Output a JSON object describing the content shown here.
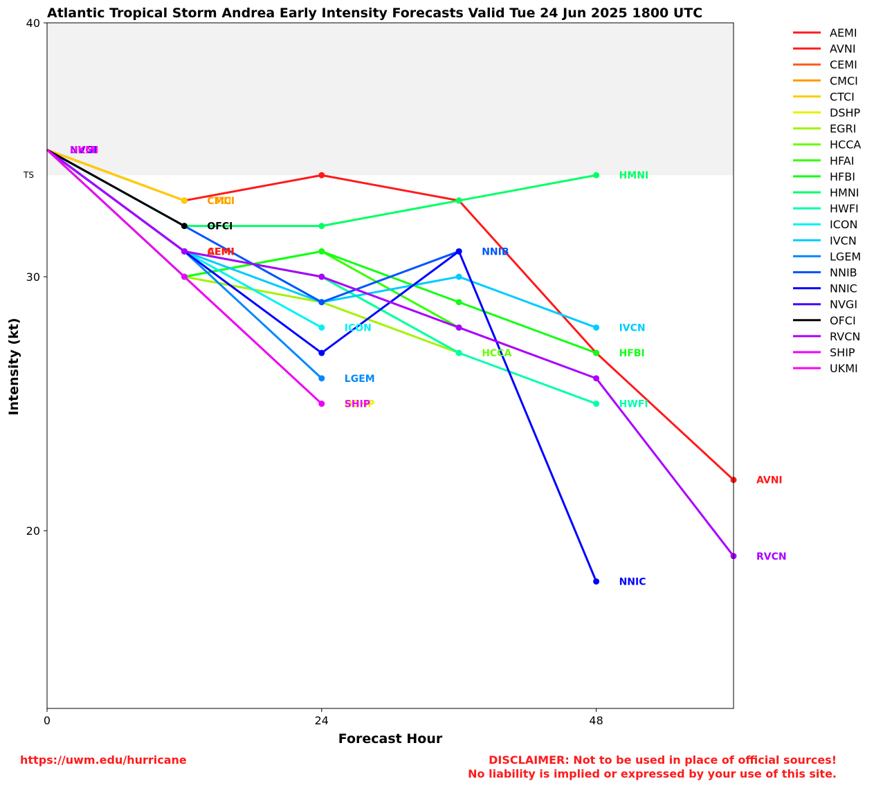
{
  "chart_data": {
    "type": "line",
    "title": "Atlantic Tropical Storm Andrea Early Intensity Forecasts Valid Tue 24 Jun 2025 1800 UTC",
    "xlabel": "Forecast Hour",
    "ylabel": "Intensity (kt)",
    "xlim": [
      0,
      60
    ],
    "ylim": [
      13,
      40
    ],
    "xticks": [
      0,
      24,
      48
    ],
    "yticks": [
      20,
      30,
      40
    ],
    "band": {
      "label": "TS",
      "from": 34,
      "to": 40,
      "color": "#f2f2f2"
    },
    "grid": false,
    "legend_position": "right",
    "series": [
      {
        "name": "AEMI",
        "color": "#ff1a1a",
        "x": [
          0,
          12
        ],
        "y": [
          35,
          31
        ],
        "end_label": ""
      },
      {
        "name": "AVNI",
        "color": "#ff1a1a",
        "x": [
          0,
          12,
          24,
          36,
          48,
          60
        ],
        "y": [
          35,
          33,
          34,
          33,
          27,
          22
        ],
        "end_label": "AVNI"
      },
      {
        "name": "CEMI",
        "color": "#ff5a1a",
        "x": [
          0,
          12
        ],
        "y": [
          35,
          31
        ],
        "end_label": ""
      },
      {
        "name": "CMCI",
        "color": "#ff9900",
        "x": [
          0,
          12
        ],
        "y": [
          35,
          33
        ],
        "end_label": ""
      },
      {
        "name": "CTCI",
        "color": "#ffcc00",
        "x": [
          0,
          12
        ],
        "y": [
          35,
          33
        ],
        "end_label": ""
      },
      {
        "name": "DSHP",
        "color": "#e6f200",
        "x": [
          0,
          12,
          24
        ],
        "y": [
          35,
          30,
          25
        ],
        "end_label": ""
      },
      {
        "name": "EGRI",
        "color": "#a6f200",
        "x": [
          0,
          12,
          24,
          36
        ],
        "y": [
          35,
          30,
          29,
          27
        ],
        "end_label": ""
      },
      {
        "name": "HCCA",
        "color": "#66ff00",
        "x": [
          0,
          12,
          24,
          36
        ],
        "y": [
          35,
          31,
          30,
          27
        ],
        "end_label": "HCCA"
      },
      {
        "name": "HFAI",
        "color": "#33ff00",
        "x": [
          0,
          12,
          24,
          36
        ],
        "y": [
          35,
          30,
          31,
          28
        ],
        "end_label": ""
      },
      {
        "name": "HFBI",
        "color": "#12ff12",
        "x": [
          0,
          12,
          24,
          36,
          48
        ],
        "y": [
          35,
          30,
          31,
          29,
          27
        ],
        "end_label": "HFBI"
      },
      {
        "name": "HMNI",
        "color": "#00ff66",
        "x": [
          0,
          12,
          24,
          36,
          48
        ],
        "y": [
          35,
          32,
          32,
          33,
          34
        ],
        "end_label": "HMNI"
      },
      {
        "name": "HWFI",
        "color": "#00ffaa",
        "x": [
          0,
          12,
          24,
          36,
          48
        ],
        "y": [
          35,
          31,
          30,
          27,
          25
        ],
        "end_label": "HWFI"
      },
      {
        "name": "ICON",
        "color": "#00f2f2",
        "x": [
          0,
          12,
          24
        ],
        "y": [
          35,
          31,
          28
        ],
        "end_label": "ICON"
      },
      {
        "name": "IVCN",
        "color": "#00ccff",
        "x": [
          0,
          12,
          24,
          36,
          48
        ],
        "y": [
          35,
          31,
          29,
          30,
          28
        ],
        "end_label": "IVCN"
      },
      {
        "name": "LGEM",
        "color": "#0088ff",
        "x": [
          0,
          12,
          24
        ],
        "y": [
          35,
          31,
          26
        ],
        "end_label": "LGEM"
      },
      {
        "name": "NNIB",
        "color": "#0055ff",
        "x": [
          0,
          12,
          24,
          36
        ],
        "y": [
          35,
          32,
          29,
          31
        ],
        "end_label": "NNIB"
      },
      {
        "name": "NNIC",
        "color": "#0000ff",
        "x": [
          0,
          12,
          24,
          36,
          48
        ],
        "y": [
          35,
          31,
          27,
          31,
          18
        ],
        "end_label": "NNIC"
      },
      {
        "name": "NVGI",
        "color": "#4400ff",
        "x": [
          0
        ],
        "y": [
          35
        ],
        "end_label": ""
      },
      {
        "name": "OFCI",
        "color": "#000000",
        "x": [
          0,
          12
        ],
        "y": [
          35,
          32
        ],
        "end_label": ""
      },
      {
        "name": "RVCN",
        "color": "#aa00ff",
        "x": [
          0,
          12,
          24,
          36,
          48,
          60
        ],
        "y": [
          35,
          31,
          30,
          28,
          26,
          19
        ],
        "end_label": "RVCN"
      },
      {
        "name": "SHIP",
        "color": "#ee00ff",
        "x": [
          0,
          12,
          24
        ],
        "y": [
          35,
          30,
          25
        ],
        "end_label": ""
      },
      {
        "name": "UKMI",
        "color": "#ff00ee",
        "x": [
          0
        ],
        "y": [
          35
        ],
        "end_label": ""
      }
    ],
    "overlap_labels": [
      {
        "text": "NVGI",
        "x": 0,
        "y": 35,
        "color": "#4400ff"
      },
      {
        "text": "UKMI",
        "x": 0,
        "y": 35,
        "color": "#ff00ee"
      },
      {
        "text": "CTCI",
        "x": 12,
        "y": 33,
        "color": "#ffcc00"
      },
      {
        "text": "CMCI",
        "x": 12,
        "y": 33,
        "color": "#ff9900"
      },
      {
        "text": "OFCI",
        "x": 12,
        "y": 32,
        "color": "#000000"
      },
      {
        "text": "CEMI",
        "x": 12,
        "y": 31,
        "color": "#ff5a1a"
      },
      {
        "text": "AEMI",
        "x": 12,
        "y": 31,
        "color": "#ff1a1a"
      },
      {
        "text": "DSHP",
        "x": 24,
        "y": 25,
        "color": "#e6f200"
      },
      {
        "text": "SHIP",
        "x": 24,
        "y": 25,
        "color": "#ee00ff"
      }
    ]
  },
  "footer": {
    "url": "https://uwm.edu/hurricane",
    "disclaimer_line1": "DISCLAIMER: Not to be used in place of official sources!",
    "disclaimer_line2": "No liability is implied or expressed by your use of this site."
  }
}
